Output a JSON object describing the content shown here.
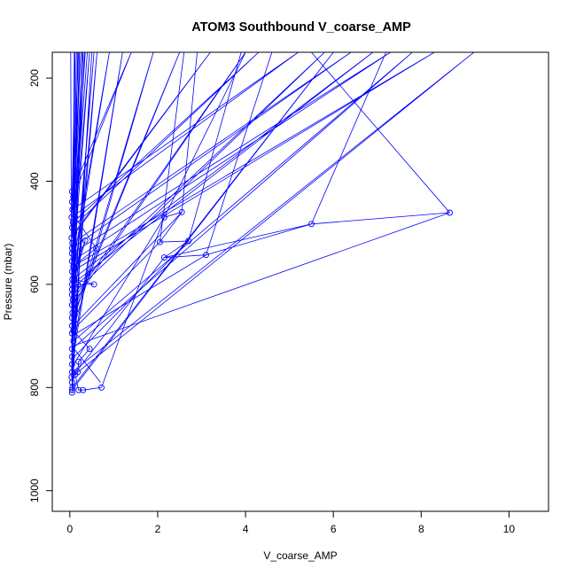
{
  "chart_data": {
    "type": "scatter",
    "title": "ATOM3 Southbound V_coarse_AMP",
    "xlabel": "V_coarse_AMP",
    "ylabel": "Pressure (mbar)",
    "xlim": [
      -0.4,
      10.9
    ],
    "ylim": [
      1040,
      150
    ],
    "y_reversed": true,
    "x_ticks": [
      0,
      2,
      4,
      6,
      8,
      10
    ],
    "y_ticks": [
      200,
      400,
      600,
      800,
      1000
    ],
    "grid": false,
    "legend": "none",
    "series_color": "#0000ff",
    "marker": "open-circle",
    "connected": true,
    "points": [
      [
        0.05,
        420
      ],
      [
        1.4,
        150
      ],
      [
        0.08,
        430
      ],
      [
        0.12,
        150
      ],
      [
        0.05,
        440
      ],
      [
        0.2,
        150
      ],
      [
        0.06,
        455
      ],
      [
        5.2,
        150
      ],
      [
        0.04,
        470
      ],
      [
        0.25,
        150
      ],
      [
        0.07,
        480
      ],
      [
        4.3,
        150
      ],
      [
        0.05,
        490
      ],
      [
        0.3,
        150
      ],
      [
        0.1,
        500
      ],
      [
        3.2,
        150
      ],
      [
        0.04,
        510
      ],
      [
        0.35,
        150
      ],
      [
        0.06,
        520
      ],
      [
        6.4,
        150
      ],
      [
        0.05,
        530
      ],
      [
        0.4,
        150
      ],
      [
        0.05,
        540
      ],
      [
        7.3,
        150
      ],
      [
        0.05,
        555
      ],
      [
        0.45,
        150
      ],
      [
        0.08,
        565
      ],
      [
        8.3,
        150
      ],
      [
        0.05,
        575
      ],
      [
        0.9,
        150
      ],
      [
        0.06,
        590
      ],
      [
        6.9,
        150
      ],
      [
        0.05,
        600
      ],
      [
        0.22,
        150
      ],
      [
        0.05,
        610
      ],
      [
        5.8,
        150
      ],
      [
        0.05,
        620
      ],
      [
        0.33,
        150
      ],
      [
        0.07,
        630
      ],
      [
        4.0,
        150
      ],
      [
        0.05,
        640
      ],
      [
        0.15,
        150
      ],
      [
        0.06,
        655
      ],
      [
        2.5,
        150
      ],
      [
        0.05,
        665
      ],
      [
        0.55,
        150
      ],
      [
        0.05,
        680
      ],
      [
        1.9,
        150
      ],
      [
        0.05,
        695
      ],
      [
        0.62,
        150
      ],
      [
        0.08,
        710
      ],
      [
        7.8,
        150
      ],
      [
        0.05,
        725
      ],
      [
        0.18,
        150
      ],
      [
        0.05,
        740
      ],
      [
        1.2,
        150
      ],
      [
        0.05,
        755
      ],
      [
        0.28,
        150
      ],
      [
        0.05,
        770
      ],
      [
        9.2,
        150
      ],
      [
        0.04,
        780
      ],
      [
        0.1,
        150
      ],
      [
        0.05,
        790
      ],
      [
        0.5,
        150
      ],
      [
        0.06,
        800
      ],
      [
        6.0,
        150
      ],
      [
        0.05,
        805
      ],
      [
        0.02,
        150
      ],
      [
        0.05,
        810
      ],
      [
        0.12,
        470
      ],
      [
        0.6,
        530
      ],
      [
        0.15,
        560
      ],
      [
        0.35,
        515
      ],
      [
        0.1,
        590
      ],
      [
        0.55,
        600
      ],
      [
        0.18,
        600
      ],
      [
        0.12,
        650
      ],
      [
        0.08,
        690
      ],
      [
        0.45,
        725
      ],
      [
        0.2,
        750
      ],
      [
        0.18,
        770
      ],
      [
        0.12,
        775
      ],
      [
        0.2,
        805
      ],
      [
        0.3,
        805
      ],
      [
        0.72,
        800
      ],
      [
        2.15,
        470
      ],
      [
        2.55,
        460
      ],
      [
        2.05,
        518
      ],
      [
        2.7,
        516
      ],
      [
        2.15,
        548
      ],
      [
        3.1,
        543
      ],
      [
        5.5,
        483
      ],
      [
        8.65,
        461
      ]
    ],
    "highlighted_paths": [
      [
        [
          0.7,
          790
        ],
        [
          0.05,
          720
        ],
        [
          8.65,
          461
        ],
        [
          5.5,
          150
        ]
      ],
      [
        [
          0.05,
          780
        ],
        [
          2.15,
          548
        ],
        [
          5.5,
          483
        ],
        [
          7.2,
          150
        ]
      ],
      [
        [
          0.05,
          700
        ],
        [
          3.1,
          543
        ],
        [
          4.6,
          150
        ]
      ],
      [
        [
          0.1,
          740
        ],
        [
          2.7,
          516
        ],
        [
          3.9,
          150
        ]
      ],
      [
        [
          0.05,
          690
        ],
        [
          2.05,
          518
        ],
        [
          2.6,
          150
        ]
      ],
      [
        [
          0.05,
          760
        ],
        [
          2.15,
          470
        ],
        [
          4.0,
          150
        ]
      ],
      [
        [
          0.08,
          680
        ],
        [
          2.55,
          460
        ],
        [
          2.9,
          150
        ]
      ]
    ]
  }
}
